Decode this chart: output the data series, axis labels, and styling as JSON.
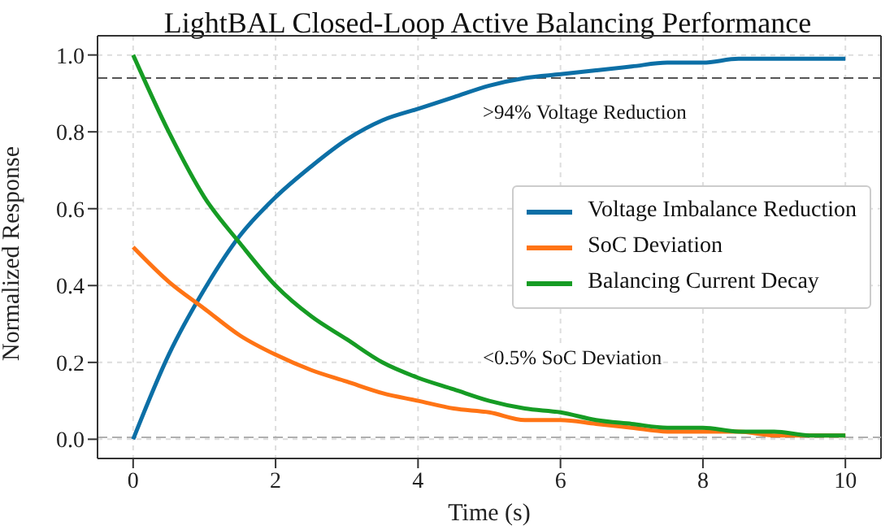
{
  "chart_data": {
    "type": "line",
    "title": "LightBAL Closed-Loop Active Balancing Performance",
    "xlabel": "Time (s)",
    "ylabel": "Normalized Response",
    "x": [
      0,
      0.5,
      1,
      1.5,
      2,
      2.5,
      3,
      3.5,
      4,
      4.5,
      5,
      5.5,
      6,
      6.5,
      7,
      7.5,
      8,
      8.5,
      9,
      9.5,
      10
    ],
    "series": [
      {
        "name": "Voltage Imbalance Reduction",
        "color": "#0c6fa6",
        "values": [
          0,
          0.22,
          0.39,
          0.53,
          0.63,
          0.71,
          0.78,
          0.83,
          0.86,
          0.89,
          0.92,
          0.94,
          0.95,
          0.96,
          0.97,
          0.98,
          0.98,
          0.99,
          0.99,
          0.99,
          0.99
        ]
      },
      {
        "name": "SoC Deviation",
        "color": "#ff7415",
        "values": [
          0.5,
          0.41,
          0.34,
          0.27,
          0.22,
          0.18,
          0.15,
          0.12,
          0.1,
          0.08,
          0.07,
          0.05,
          0.05,
          0.04,
          0.03,
          0.02,
          0.02,
          0.02,
          0.01,
          0.01,
          0.01
        ]
      },
      {
        "name": "Balancing Current Decay",
        "color": "#169c24",
        "values": [
          1,
          0.8,
          0.63,
          0.51,
          0.4,
          0.32,
          0.26,
          0.2,
          0.16,
          0.13,
          0.1,
          0.08,
          0.07,
          0.05,
          0.04,
          0.03,
          0.03,
          0.02,
          0.02,
          0.01,
          0.01
        ]
      }
    ],
    "xlim": [
      -0.5,
      10.5
    ],
    "xticks": [
      0,
      2,
      4,
      6,
      8,
      10
    ],
    "ylim": [
      -0.05,
      1.05
    ],
    "yticks": [
      {
        "value": 0,
        "label": "0.0"
      },
      0.2,
      0.4,
      0.6,
      0.8,
      {
        "value": 1,
        "label": "1.0"
      }
    ],
    "ref_lines": [
      {
        "axis": "y",
        "value": 0.94,
        "color": "#555555",
        "line_style": "dashed"
      },
      {
        "axis": "y",
        "value": 0.005,
        "color": "#b0b0b0",
        "line_style": "dashed"
      }
    ],
    "annotations": [
      ">94% Voltage Reduction",
      "<0.5% SoC Deviation"
    ],
    "grid": true,
    "legend": "right",
    "marker": "none",
    "line_style": "solid"
  }
}
